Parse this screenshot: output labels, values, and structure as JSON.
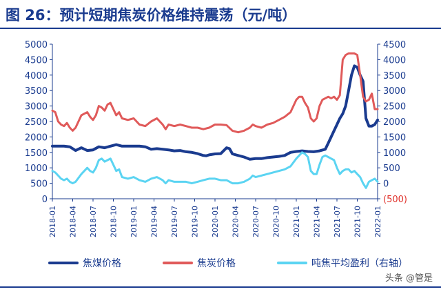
{
  "header": {
    "title": "图 26：预计短期焦炭价格维持震荡（元/吨）"
  },
  "watermark": {
    "text": "头条 @管是"
  },
  "chart_data": {
    "type": "line",
    "title": "图 26：预计短期焦炭价格维持震荡（元/吨）",
    "xlabel": "",
    "ylabel": "",
    "x_ticks": [
      "2018-01",
      "2018-04",
      "2018-07",
      "2018-10",
      "2019-01",
      "2019-04",
      "2019-07",
      "2019-10",
      "2020-01",
      "2020-04",
      "2020-07",
      "2020-10",
      "2021-01",
      "2021-04",
      "2021-07",
      "2021-10",
      "2022-01"
    ],
    "y_left": {
      "lim": [
        0,
        5000
      ],
      "ticks": [
        "0",
        "500",
        "1000",
        "1500",
        "2000",
        "2500",
        "3000",
        "3500",
        "4000",
        "4500",
        "5000"
      ]
    },
    "y_right": {
      "lim": [
        -500,
        4500
      ],
      "ticks": [
        "(500)",
        "0",
        "500",
        "1000",
        "1500",
        "2000",
        "2500",
        "3000",
        "3500",
        "4000",
        "4500"
      ]
    },
    "legend_position": "bottom",
    "series": [
      {
        "name": "焦煤价格",
        "axis": "left",
        "color": "#1a3b8f",
        "points": [
          [
            0,
            1700
          ],
          [
            2,
            1700
          ],
          [
            4,
            1700
          ],
          [
            6,
            1680
          ],
          [
            8,
            1560
          ],
          [
            10,
            1650
          ],
          [
            12,
            1560
          ],
          [
            14,
            1580
          ],
          [
            16,
            1680
          ],
          [
            18,
            1650
          ],
          [
            20,
            1700
          ],
          [
            22,
            1750
          ],
          [
            24,
            1700
          ],
          [
            26,
            1700
          ],
          [
            28,
            1700
          ],
          [
            30,
            1700
          ],
          [
            32,
            1680
          ],
          [
            34,
            1600
          ],
          [
            36,
            1620
          ],
          [
            38,
            1600
          ],
          [
            40,
            1580
          ],
          [
            42,
            1550
          ],
          [
            44,
            1560
          ],
          [
            46,
            1520
          ],
          [
            48,
            1500
          ],
          [
            50,
            1460
          ],
          [
            52,
            1400
          ],
          [
            53,
            1390
          ],
          [
            54,
            1420
          ],
          [
            56,
            1450
          ],
          [
            58,
            1460
          ],
          [
            60,
            1650
          ],
          [
            61,
            1620
          ],
          [
            62,
            1450
          ],
          [
            64,
            1400
          ],
          [
            66,
            1350
          ],
          [
            68,
            1280
          ],
          [
            70,
            1300
          ],
          [
            72,
            1300
          ],
          [
            74,
            1330
          ],
          [
            76,
            1350
          ],
          [
            78,
            1370
          ],
          [
            80,
            1400
          ],
          [
            82,
            1500
          ],
          [
            84,
            1530
          ],
          [
            86,
            1550
          ],
          [
            88,
            1530
          ],
          [
            90,
            1520
          ],
          [
            92,
            1550
          ],
          [
            94,
            1600
          ],
          [
            95,
            1800
          ],
          [
            96,
            2000
          ],
          [
            97,
            2200
          ],
          [
            98,
            2400
          ],
          [
            99,
            2600
          ],
          [
            100,
            2750
          ],
          [
            101,
            3000
          ],
          [
            102,
            3500
          ],
          [
            103,
            4000
          ],
          [
            104,
            4300
          ],
          [
            105,
            4250
          ],
          [
            106,
            4000
          ],
          [
            107,
            3800
          ],
          [
            108,
            2600
          ],
          [
            109,
            2350
          ],
          [
            110,
            2350
          ],
          [
            111,
            2400
          ],
          [
            112,
            2550
          ]
        ]
      },
      {
        "name": "焦炭价格",
        "axis": "left",
        "color": "#e05a5a",
        "points": [
          [
            0,
            2850
          ],
          [
            1,
            2800
          ],
          [
            2,
            2500
          ],
          [
            3,
            2400
          ],
          [
            4,
            2350
          ],
          [
            5,
            2450
          ],
          [
            6,
            2300
          ],
          [
            7,
            2200
          ],
          [
            8,
            2300
          ],
          [
            10,
            2700
          ],
          [
            12,
            2800
          ],
          [
            13,
            2650
          ],
          [
            14,
            2550
          ],
          [
            15,
            2700
          ],
          [
            16,
            3000
          ],
          [
            17,
            2950
          ],
          [
            18,
            2850
          ],
          [
            19,
            3050
          ],
          [
            20,
            3100
          ],
          [
            21,
            2900
          ],
          [
            22,
            2700
          ],
          [
            23,
            2800
          ],
          [
            24,
            2600
          ],
          [
            26,
            2550
          ],
          [
            28,
            2600
          ],
          [
            30,
            2400
          ],
          [
            32,
            2350
          ],
          [
            34,
            2500
          ],
          [
            36,
            2600
          ],
          [
            38,
            2400
          ],
          [
            39,
            2250
          ],
          [
            40,
            2400
          ],
          [
            42,
            2350
          ],
          [
            44,
            2400
          ],
          [
            46,
            2350
          ],
          [
            48,
            2300
          ],
          [
            50,
            2300
          ],
          [
            52,
            2250
          ],
          [
            54,
            2300
          ],
          [
            56,
            2400
          ],
          [
            58,
            2400
          ],
          [
            60,
            2380
          ],
          [
            62,
            2200
          ],
          [
            64,
            2150
          ],
          [
            66,
            2200
          ],
          [
            68,
            2300
          ],
          [
            69,
            2400
          ],
          [
            70,
            2350
          ],
          [
            72,
            2300
          ],
          [
            74,
            2400
          ],
          [
            76,
            2450
          ],
          [
            78,
            2550
          ],
          [
            80,
            2650
          ],
          [
            82,
            2800
          ],
          [
            84,
            3200
          ],
          [
            85,
            3300
          ],
          [
            86,
            3300
          ],
          [
            87,
            3100
          ],
          [
            88,
            2950
          ],
          [
            89,
            2600
          ],
          [
            90,
            2500
          ],
          [
            91,
            2600
          ],
          [
            92,
            3000
          ],
          [
            93,
            3200
          ],
          [
            94,
            3250
          ],
          [
            95,
            3300
          ],
          [
            96,
            3250
          ],
          [
            97,
            3300
          ],
          [
            98,
            3200
          ],
          [
            99,
            3350
          ],
          [
            100,
            4500
          ],
          [
            101,
            4650
          ],
          [
            102,
            4700
          ],
          [
            103,
            4700
          ],
          [
            104,
            4700
          ],
          [
            105,
            4650
          ],
          [
            106,
            4000
          ],
          [
            107,
            3300
          ],
          [
            108,
            3150
          ],
          [
            109,
            3200
          ],
          [
            110,
            3400
          ],
          [
            111,
            2900
          ],
          [
            112,
            2900
          ]
        ]
      },
      {
        "name": "吨焦平均盈利（右轴）",
        "axis": "right",
        "color": "#5bd4f2",
        "points": [
          [
            0,
            400
          ],
          [
            1,
            350
          ],
          [
            2,
            250
          ],
          [
            3,
            150
          ],
          [
            4,
            100
          ],
          [
            5,
            150
          ],
          [
            6,
            50
          ],
          [
            7,
            0
          ],
          [
            8,
            50
          ],
          [
            10,
            300
          ],
          [
            12,
            500
          ],
          [
            13,
            400
          ],
          [
            14,
            350
          ],
          [
            15,
            500
          ],
          [
            16,
            750
          ],
          [
            17,
            800
          ],
          [
            18,
            700
          ],
          [
            19,
            750
          ],
          [
            20,
            800
          ],
          [
            21,
            600
          ],
          [
            22,
            400
          ],
          [
            23,
            450
          ],
          [
            24,
            200
          ],
          [
            26,
            150
          ],
          [
            28,
            200
          ],
          [
            30,
            100
          ],
          [
            32,
            50
          ],
          [
            34,
            150
          ],
          [
            36,
            200
          ],
          [
            38,
            100
          ],
          [
            39,
            0
          ],
          [
            40,
            100
          ],
          [
            42,
            50
          ],
          [
            44,
            50
          ],
          [
            46,
            50
          ],
          [
            48,
            0
          ],
          [
            50,
            50
          ],
          [
            52,
            100
          ],
          [
            54,
            150
          ],
          [
            56,
            150
          ],
          [
            58,
            100
          ],
          [
            60,
            100
          ],
          [
            62,
            0
          ],
          [
            64,
            0
          ],
          [
            66,
            50
          ],
          [
            68,
            150
          ],
          [
            69,
            250
          ],
          [
            70,
            200
          ],
          [
            72,
            250
          ],
          [
            74,
            300
          ],
          [
            76,
            350
          ],
          [
            78,
            400
          ],
          [
            80,
            450
          ],
          [
            82,
            550
          ],
          [
            84,
            800
          ],
          [
            85,
            900
          ],
          [
            86,
            1000
          ],
          [
            87,
            950
          ],
          [
            88,
            850
          ],
          [
            89,
            400
          ],
          [
            90,
            300
          ],
          [
            91,
            300
          ],
          [
            92,
            600
          ],
          [
            93,
            850
          ],
          [
            94,
            900
          ],
          [
            95,
            850
          ],
          [
            96,
            800
          ],
          [
            97,
            750
          ],
          [
            98,
            500
          ],
          [
            99,
            300
          ],
          [
            100,
            400
          ],
          [
            101,
            450
          ],
          [
            102,
            450
          ],
          [
            103,
            350
          ],
          [
            104,
            400
          ],
          [
            105,
            300
          ],
          [
            106,
            200
          ],
          [
            107,
            0
          ],
          [
            108,
            -150
          ],
          [
            109,
            50
          ],
          [
            110,
            100
          ],
          [
            111,
            150
          ],
          [
            112,
            50
          ]
        ]
      }
    ]
  }
}
